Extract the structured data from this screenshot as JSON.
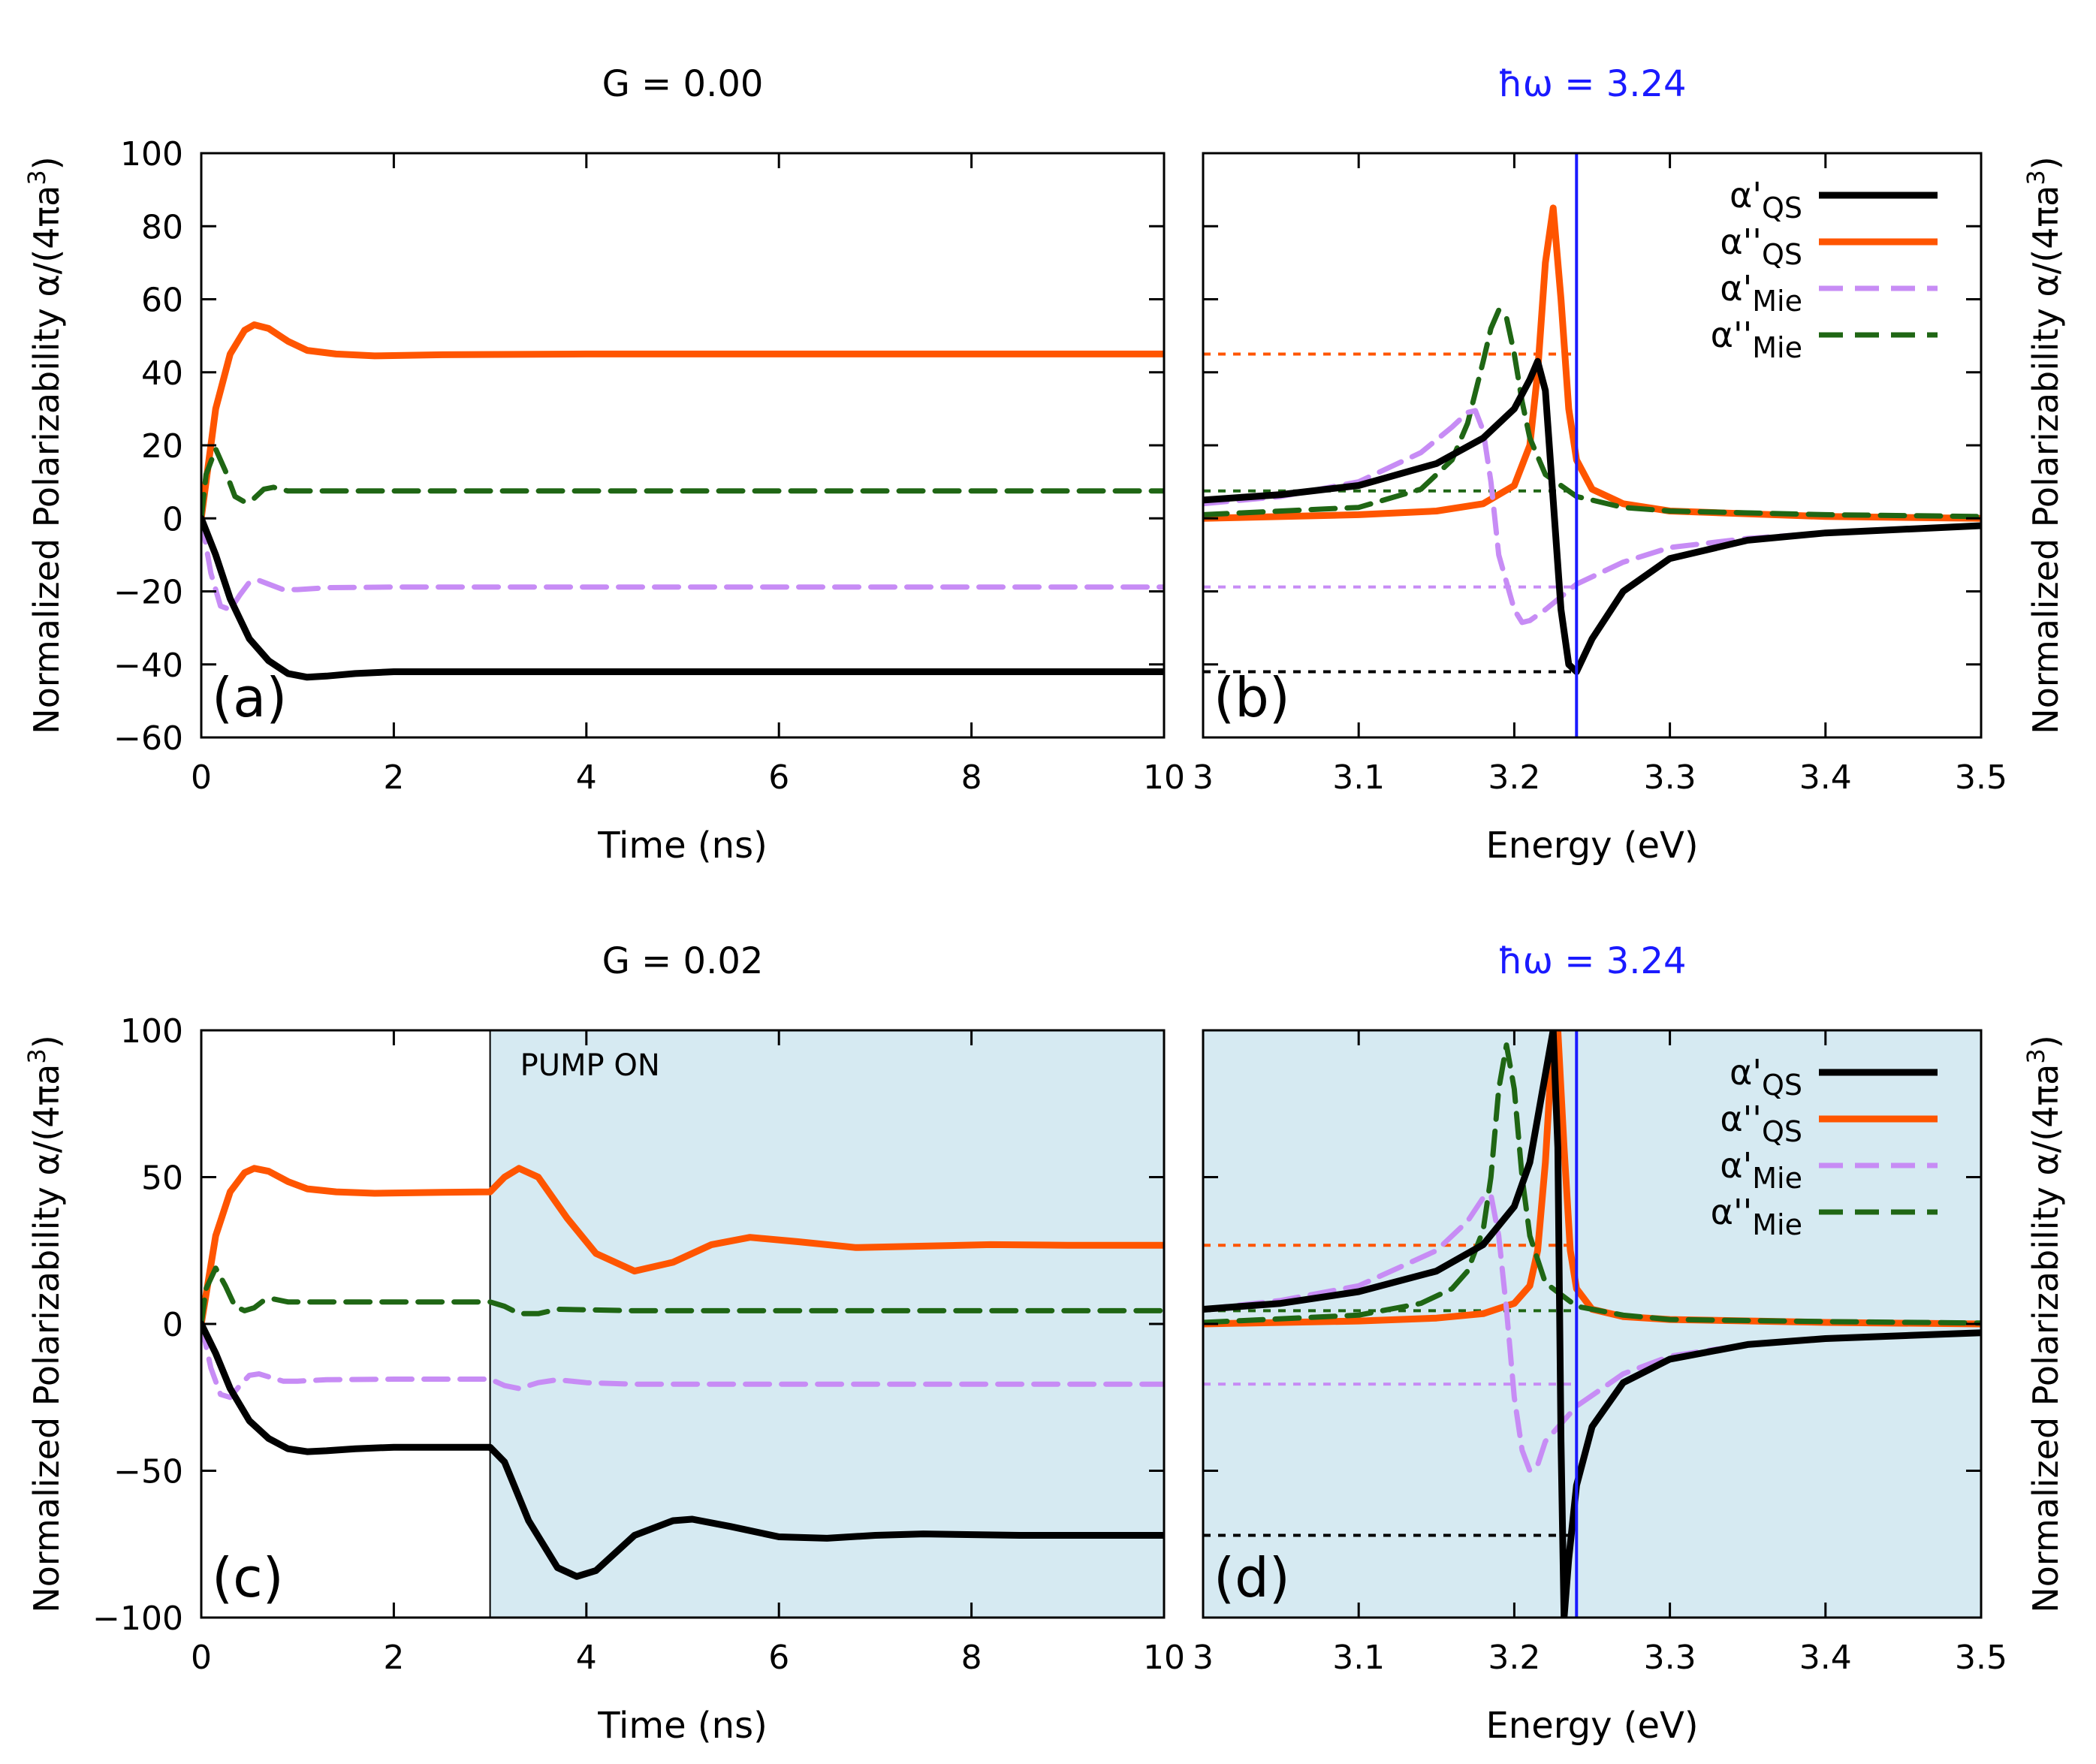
{
  "figure": {
    "ylabel": "Normalized Polarizability α/(4πa³)",
    "ylabel_main": "Normalized Polarizability α/(4πa",
    "ylabel_sup": "3",
    "ylabel_tail": ")"
  },
  "legend_labels": [
    {
      "base": "α'",
      "sub": "QS"
    },
    {
      "base": "α''",
      "sub": "QS"
    },
    {
      "base": "α'",
      "sub": "Mie"
    },
    {
      "base": "α''",
      "sub": "Mie"
    }
  ],
  "colors": {
    "alpha_re_qs": "#000000",
    "alpha_im_qs": "#ff5500",
    "alpha_re_mie": "#c78cf5",
    "alpha_im_mie": "#1f6614",
    "marker_line": "#1a1aff",
    "pump_fill": "#d6eaf2"
  },
  "chart_data": [
    {
      "id": "a",
      "type": "line",
      "tag": "(a)",
      "title": "G = 0.00",
      "xlabel": "Time (ns)",
      "xlim": [
        0,
        10
      ],
      "ylim": [
        -60,
        100
      ],
      "xticks": [
        0,
        2,
        4,
        6,
        8,
        10
      ],
      "yticks": [
        -60,
        -40,
        -20,
        0,
        20,
        40,
        60,
        80,
        100
      ],
      "ytick_labels": [
        "−60",
        "−40",
        "−20",
        "0",
        "20",
        "40",
        "60",
        "80",
        "100"
      ],
      "series": [
        {
          "name": "α''_QS",
          "x": [
            0,
            0.15,
            0.3,
            0.45,
            0.55,
            0.7,
            0.9,
            1.1,
            1.4,
            1.8,
            2.5,
            4,
            10
          ],
          "y": [
            0,
            30,
            45,
            51.5,
            53,
            52,
            48.5,
            46,
            45,
            44.5,
            44.8,
            45,
            45
          ]
        },
        {
          "name": "α''_Mie",
          "x": [
            0,
            0.05,
            0.15,
            0.25,
            0.35,
            0.45,
            0.55,
            0.65,
            0.75,
            0.9,
            1.2,
            2,
            10
          ],
          "y": [
            0,
            12,
            19,
            13,
            6,
            4.5,
            5.5,
            8,
            8.5,
            7.5,
            7.5,
            7.5,
            7.5
          ]
        },
        {
          "name": "α'_Mie",
          "x": [
            0,
            0.1,
            0.2,
            0.3,
            0.4,
            0.5,
            0.6,
            0.7,
            0.85,
            1.0,
            1.3,
            2,
            10
          ],
          "y": [
            0,
            -15,
            -24,
            -25,
            -21,
            -17.5,
            -17,
            -18,
            -19.5,
            -19.5,
            -19,
            -18.8,
            -18.8
          ]
        },
        {
          "name": "α'_QS",
          "x": [
            0,
            0.15,
            0.3,
            0.5,
            0.7,
            0.9,
            1.1,
            1.3,
            1.6,
            2.0,
            3,
            10
          ],
          "y": [
            0,
            -10,
            -22,
            -33,
            -39,
            -42.5,
            -43.5,
            -43.2,
            -42.5,
            -42,
            -42,
            -42
          ]
        }
      ]
    },
    {
      "id": "b",
      "type": "line",
      "tag": "(b)",
      "title": "ħω = 3.24",
      "xlabel": "Energy (eV)",
      "xlim": [
        3.0,
        3.5
      ],
      "ylim": [
        -60,
        100
      ],
      "xticks": [
        3.0,
        3.1,
        3.2,
        3.3,
        3.4,
        3.5
      ],
      "yticks": [
        -60,
        -40,
        -20,
        0,
        20,
        40,
        60,
        80,
        100
      ],
      "xtick_labels": [
        "3",
        "3.1",
        "3.2",
        "3.3",
        "3.4",
        "3.5"
      ],
      "marker_x": 3.24,
      "hlines": [
        {
          "name": "α''_QS",
          "y": 45
        },
        {
          "name": "α''_Mie",
          "y": 7.5
        },
        {
          "name": "α'_Mie",
          "y": -18.8
        },
        {
          "name": "α'_QS",
          "y": -42
        }
      ],
      "series": [
        {
          "name": "α'_QS",
          "x": [
            3.0,
            3.05,
            3.1,
            3.15,
            3.18,
            3.2,
            3.21,
            3.215,
            3.22,
            3.225,
            3.23,
            3.235,
            3.24,
            3.25,
            3.27,
            3.3,
            3.35,
            3.4,
            3.5
          ],
          "y": [
            5,
            6.5,
            9,
            15,
            22,
            30,
            38,
            43,
            35,
            5,
            -25,
            -40,
            -42,
            -33,
            -20,
            -11,
            -6,
            -4,
            -2
          ]
        },
        {
          "name": "α''_QS",
          "x": [
            3.0,
            3.1,
            3.15,
            3.18,
            3.2,
            3.21,
            3.215,
            3.22,
            3.225,
            3.23,
            3.235,
            3.24,
            3.25,
            3.27,
            3.3,
            3.4,
            3.5
          ],
          "y": [
            0,
            1,
            2,
            4,
            9,
            20,
            40,
            70,
            85,
            60,
            30,
            16,
            8,
            4,
            2,
            0.5,
            0
          ]
        },
        {
          "name": "α'_Mie",
          "x": [
            3.0,
            3.05,
            3.1,
            3.14,
            3.16,
            3.17,
            3.175,
            3.18,
            3.185,
            3.19,
            3.2,
            3.205,
            3.21,
            3.22,
            3.24,
            3.27,
            3.3,
            3.35,
            3.4,
            3.5
          ],
          "y": [
            4,
            6,
            10,
            18,
            25,
            29,
            29.5,
            24,
            10,
            -10,
            -25,
            -28.5,
            -28,
            -25,
            -18,
            -12,
            -8,
            -5.5,
            -4,
            -2
          ]
        },
        {
          "name": "α''_Mie",
          "x": [
            3.0,
            3.1,
            3.14,
            3.16,
            3.17,
            3.18,
            3.185,
            3.19,
            3.195,
            3.2,
            3.205,
            3.21,
            3.22,
            3.24,
            3.27,
            3.3,
            3.4,
            3.5
          ],
          "y": [
            1,
            3,
            8,
            16,
            26,
            43,
            52,
            57,
            55,
            45,
            32,
            22,
            12,
            6,
            3,
            2,
            1,
            0.5
          ]
        }
      ]
    },
    {
      "id": "c",
      "type": "line",
      "tag": "(c)",
      "title": "G = 0.02",
      "xlabel": "Time (ns)",
      "xlim": [
        0,
        10
      ],
      "ylim": [
        -100,
        100
      ],
      "xticks": [
        0,
        2,
        4,
        6,
        8,
        10
      ],
      "yticks": [
        -100,
        -50,
        0,
        50,
        100
      ],
      "ytick_labels": [
        "−100",
        "−50",
        "0",
        "50",
        "100"
      ],
      "pump_region": [
        3.0,
        10.0
      ],
      "pump_label": "PUMP ON",
      "series": [
        {
          "name": "α''_QS",
          "x": [
            0,
            0.15,
            0.3,
            0.45,
            0.55,
            0.7,
            0.9,
            1.1,
            1.4,
            1.8,
            2.5,
            3.0,
            3.15,
            3.3,
            3.5,
            3.8,
            4.1,
            4.5,
            4.9,
            5.3,
            5.7,
            6.2,
            6.8,
            7.5,
            8.2,
            9,
            10
          ],
          "y": [
            0,
            30,
            45,
            51.5,
            53,
            52,
            48.5,
            46,
            45,
            44.5,
            44.8,
            45,
            50,
            53,
            50,
            36,
            24,
            18,
            21,
            27,
            29.5,
            28,
            26,
            26.5,
            27,
            26.8,
            26.8
          ]
        },
        {
          "name": "α''_Mie",
          "x": [
            0,
            0.05,
            0.15,
            0.25,
            0.35,
            0.45,
            0.55,
            0.65,
            0.75,
            0.9,
            1.2,
            2,
            3.0,
            3.15,
            3.3,
            3.5,
            3.7,
            4.0,
            4.5,
            6,
            10
          ],
          "y": [
            0,
            12,
            19,
            13,
            6,
            4.5,
            5.5,
            8,
            8.5,
            7.5,
            7.5,
            7.5,
            7.5,
            6,
            3.5,
            3.5,
            5,
            4.8,
            4.5,
            4.5,
            4.5
          ]
        },
        {
          "name": "α'_Mie",
          "x": [
            0,
            0.1,
            0.2,
            0.3,
            0.4,
            0.5,
            0.6,
            0.7,
            0.85,
            1.0,
            1.3,
            2,
            3.0,
            3.15,
            3.3,
            3.5,
            3.7,
            4.0,
            4.5,
            6,
            10
          ],
          "y": [
            0,
            -15,
            -24,
            -25,
            -21,
            -17.5,
            -17,
            -18,
            -19.5,
            -19.5,
            -19,
            -18.8,
            -18.8,
            -21,
            -22,
            -20,
            -19,
            -20,
            -20.5,
            -20.5,
            -20.5
          ]
        },
        {
          "name": "α'_QS",
          "x": [
            0,
            0.15,
            0.3,
            0.5,
            0.7,
            0.9,
            1.1,
            1.3,
            1.6,
            2.0,
            2.5,
            3.0,
            3.15,
            3.4,
            3.7,
            3.9,
            4.1,
            4.5,
            4.9,
            5.1,
            5.5,
            6.0,
            6.5,
            7.0,
            7.5,
            8.5,
            10
          ],
          "y": [
            0,
            -10,
            -22,
            -33,
            -39,
            -42.5,
            -43.5,
            -43.2,
            -42.5,
            -42,
            -42,
            -42,
            -47,
            -67,
            -83,
            -86,
            -84,
            -72,
            -67,
            -66.5,
            -69,
            -72.5,
            -73,
            -72,
            -71.5,
            -72,
            -72
          ]
        }
      ]
    },
    {
      "id": "d",
      "type": "line",
      "tag": "(d)",
      "title": "ħω = 3.24",
      "xlabel": "Energy (eV)",
      "xlim": [
        3.0,
        3.5
      ],
      "ylim": [
        -100,
        100
      ],
      "xticks": [
        3.0,
        3.1,
        3.2,
        3.3,
        3.4,
        3.5
      ],
      "yticks": [
        -100,
        -50,
        0,
        50,
        100
      ],
      "xtick_labels": [
        "3",
        "3.1",
        "3.2",
        "3.3",
        "3.4",
        "3.5"
      ],
      "marker_x": 3.24,
      "pump_region": [
        3.0,
        3.5
      ],
      "hlines": [
        {
          "name": "α''_QS",
          "y": 26.8
        },
        {
          "name": "α''_Mie",
          "y": 4.5
        },
        {
          "name": "α'_Mie",
          "y": -20.5
        },
        {
          "name": "α'_QS",
          "y": -72
        }
      ],
      "series": [
        {
          "name": "α'_QS",
          "x": [
            3.0,
            3.05,
            3.1,
            3.15,
            3.18,
            3.2,
            3.21,
            3.22,
            3.225,
            3.228,
            3.23,
            3.232,
            3.235,
            3.24,
            3.25,
            3.27,
            3.3,
            3.35,
            3.4,
            3.5
          ],
          "y": [
            5,
            7,
            11,
            18,
            27,
            40,
            55,
            85,
            100,
            60,
            -40,
            -100,
            -80,
            -55,
            -35,
            -20,
            -12,
            -7,
            -5,
            -3
          ]
        },
        {
          "name": "α''_QS",
          "x": [
            3.0,
            3.1,
            3.15,
            3.18,
            3.2,
            3.21,
            3.215,
            3.22,
            3.225,
            3.228,
            3.232,
            3.236,
            3.24,
            3.25,
            3.27,
            3.3,
            3.4,
            3.5
          ],
          "y": [
            0,
            1,
            2,
            3.5,
            7,
            13,
            25,
            55,
            100,
            100,
            60,
            25,
            12,
            5,
            2.5,
            1.5,
            0.5,
            0
          ]
        },
        {
          "name": "α'_Mie",
          "x": [
            3.0,
            3.05,
            3.1,
            3.15,
            3.17,
            3.18,
            3.185,
            3.19,
            3.195,
            3.2,
            3.205,
            3.21,
            3.215,
            3.22,
            3.24,
            3.27,
            3.3,
            3.35,
            3.4,
            3.5
          ],
          "y": [
            5,
            8,
            13,
            25,
            35,
            43,
            44,
            30,
            5,
            -25,
            -43,
            -50,
            -48,
            -40,
            -28,
            -17,
            -11,
            -7,
            -5,
            -3
          ]
        },
        {
          "name": "α''_Mie",
          "x": [
            3.0,
            3.1,
            3.14,
            3.16,
            3.17,
            3.18,
            3.185,
            3.19,
            3.195,
            3.2,
            3.205,
            3.21,
            3.22,
            3.24,
            3.27,
            3.3,
            3.4,
            3.5
          ],
          "y": [
            0.5,
            3,
            7,
            12,
            18,
            32,
            50,
            80,
            95,
            80,
            50,
            30,
            14,
            6,
            3,
            1.5,
            0.8,
            0.3
          ]
        }
      ]
    }
  ]
}
